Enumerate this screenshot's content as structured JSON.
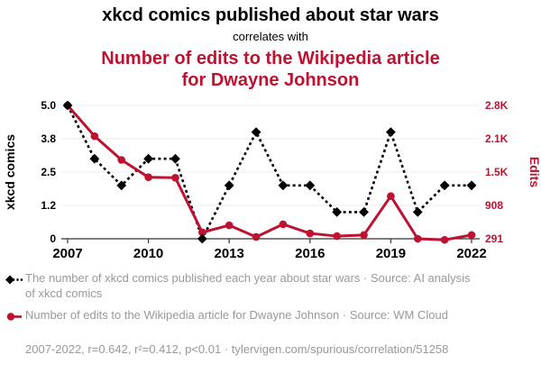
{
  "header": {
    "title": "xkcd comics published about star wars",
    "connector": "correlates with",
    "subtitle": "Number of edits to the Wikipedia article for Dwayne Johnson"
  },
  "colors": {
    "black_series": "#000000",
    "red_series": "#be1231",
    "legend_text": "#999999",
    "gridline": "#ededed",
    "axis_line": "#333333"
  },
  "chart_data": {
    "type": "line",
    "x": [
      2007,
      2008,
      2009,
      2010,
      2011,
      2012,
      2013,
      2014,
      2015,
      2016,
      2017,
      2018,
      2019,
      2020,
      2021,
      2022
    ],
    "x_tick_labels": [
      "2007",
      "2010",
      "2013",
      "2016",
      "2019",
      "2022"
    ],
    "series": [
      {
        "name": "xkcd comics published about star wars",
        "axis": "left",
        "style": "dashed-diamond",
        "color": "#000000",
        "values": [
          5,
          3,
          2,
          3,
          3,
          0,
          2,
          4,
          2,
          2,
          1,
          1,
          4,
          1,
          2,
          2
        ]
      },
      {
        "name": "Edits to Wikipedia article for Dwayne Johnson",
        "axis": "right",
        "style": "solid-circle",
        "color": "#be1231",
        "values": [
          2759,
          2190,
          1750,
          1430,
          1420,
          410,
          540,
          325,
          560,
          390,
          340,
          360,
          1080,
          291,
          270,
          360
        ]
      }
    ],
    "left_axis": {
      "label": "xkcd comics",
      "tick_labels": [
        "5.0",
        "3.8",
        "2.5",
        "1.2",
        "0"
      ],
      "range": [
        0,
        5
      ]
    },
    "right_axis": {
      "label": "Edits",
      "tick_labels": [
        "2.8K",
        "2.1K",
        "1.5K",
        "908",
        "291"
      ],
      "range": [
        291,
        2759
      ]
    },
    "grid": "horizontal",
    "legend_position": "bottom"
  },
  "legend": [
    {
      "marker": "black-diamond-dashed",
      "text": "The number of xkcd comics published each year about star wars · Source: AI analysis of xkcd comics"
    },
    {
      "marker": "red-circle-solid",
      "text": "Number of edits to the Wikipedia article for Dwayne Johnson · Source: WM Cloud"
    }
  ],
  "footer": {
    "text": "2007-2022, r=0.642, r²=0.412, p<0.01 · tylervigen.com/spurious/correlation/51258"
  }
}
